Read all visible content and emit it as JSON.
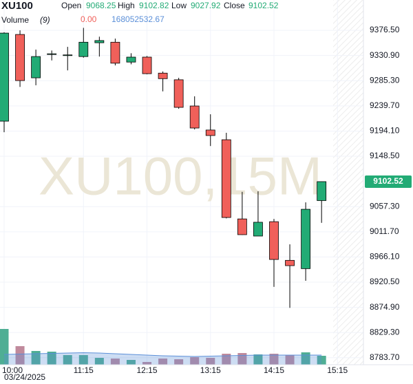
{
  "chart_data": {
    "type": "candlestick",
    "title": "XU100",
    "watermark": "XU100,15M",
    "legend": {
      "open": "Open",
      "high": "High",
      "low": "Low",
      "close": "Close",
      "volume": "Volume",
      "volume_period": "(9)",
      "volume_value": "0.00"
    },
    "date_label": "03/24/2025",
    "xticks": [
      {
        "value": 0,
        "label": "10:00"
      },
      {
        "value": 5,
        "label": "11:15"
      },
      {
        "value": 9,
        "label": "12:15"
      },
      {
        "value": 13,
        "label": "13:15"
      },
      {
        "value": 17,
        "label": "14:15"
      },
      {
        "value": 21,
        "label": "15:15"
      }
    ],
    "xlim": [
      -0.26,
      20.73
    ],
    "ylim": [
      8771,
      9404
    ],
    "yticks": [
      {
        "value": 9376.5,
        "label": "9376.50"
      },
      {
        "value": 9330.9,
        "label": "9330.90"
      },
      {
        "value": 9285.3,
        "label": "9285.30"
      },
      {
        "value": 9239.7,
        "label": "9239.70"
      },
      {
        "value": 9194.1,
        "label": "9194.10"
      },
      {
        "value": 9148.5,
        "label": "9148.50"
      },
      {
        "value": 9057.3,
        "label": "9057.30"
      },
      {
        "value": 9011.7,
        "label": "9011.70"
      },
      {
        "value": 8966.1,
        "label": "8966.10"
      },
      {
        "value": 8920.5,
        "label": "8920.50"
      },
      {
        "value": 8874.9,
        "label": "8874.90"
      },
      {
        "value": 8829.3,
        "label": "8829.30"
      },
      {
        "value": 8783.7,
        "label": "8783.70"
      }
    ],
    "grid": true,
    "up_color": "#22ab75",
    "down_color": "#f0605a",
    "open": [
      9212,
      9369,
      9290.5,
      9333,
      9331,
      9329,
      9354,
      9355,
      9319,
      9328,
      9299,
      9287,
      9239.5,
      9196,
      9178.4,
      9035,
      9004,
      9030,
      8960,
      8945,
      9068.25
    ],
    "high": [
      9373,
      9376.5,
      9341.6,
      9340,
      9346.6,
      9381,
      9365,
      9361.5,
      9335,
      9330,
      9302,
      9290.5,
      9257,
      9224.5,
      9191,
      9084,
      9085,
      9035,
      8989,
      9065,
      9102.82
    ],
    "low": [
      9192,
      9274,
      9277,
      9322,
      9304,
      9327,
      9329,
      9313,
      9315,
      9297,
      9266,
      9234.5,
      9197,
      9167,
      9036,
      9006,
      9004,
      8912,
      8874,
      8923,
      9027.92
    ],
    "close": [
      9371.5,
      9285.5,
      9329,
      9334,
      9332,
      9355,
      9358,
      9317,
      9328,
      9298,
      9289,
      9237,
      9199.6,
      9186,
      9037.6,
      9006.5,
      9029,
      8961.6,
      8950.4,
      9052.5,
      9102.52
    ],
    "volume": [
      624000000,
      324000000,
      240000000,
      228000000,
      168000000,
      168000000,
      120000000,
      108000000,
      84000000,
      48000000,
      108000000,
      96000000,
      132000000,
      120000000,
      192000000,
      204000000,
      180000000,
      192000000,
      168000000,
      216000000,
      156000000
    ],
    "volume_ma": [
      180000000,
      186000000,
      192000000,
      198000000,
      204000000,
      210000000,
      204000000,
      192000000,
      180000000,
      168000000,
      156000000,
      150000000,
      144000000,
      150000000,
      156000000,
      162000000,
      168000000,
      168000000,
      168000000,
      168000000,
      168052532.67
    ],
    "vlim": [
      0,
      720000000
    ],
    "volume_up_color": "#4fae94",
    "volume_down_color": "#c08a9c",
    "volume_ma_color": "#5b8fd8"
  }
}
